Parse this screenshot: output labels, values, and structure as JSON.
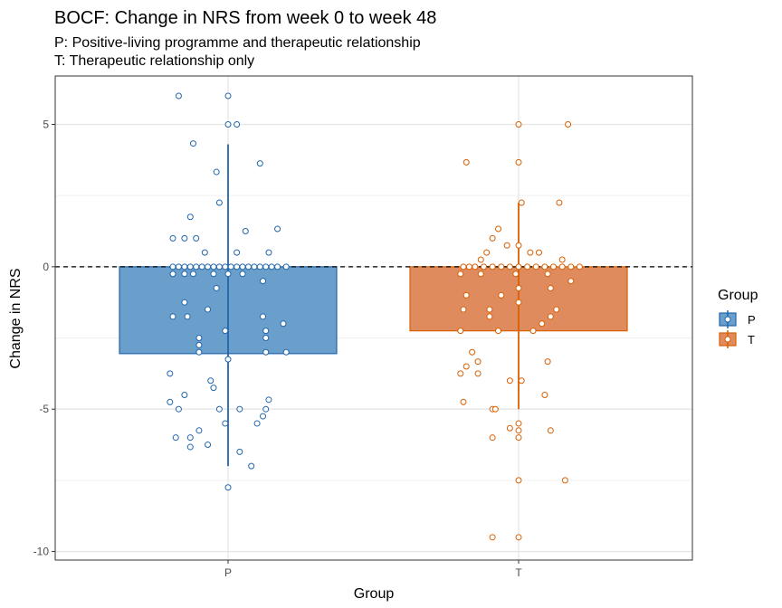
{
  "chart_data": {
    "type": "bar",
    "title": "BOCF: Change in NRS from week 0 to week 48",
    "subtitle_lines": [
      "P: Positive-living programme and therapeutic relationship",
      "T: Therapeutic relationship only"
    ],
    "xlabel": "Group",
    "ylabel": "Change in NRS",
    "categories": [
      "P",
      "T"
    ],
    "ylim": [
      -10.3,
      6.7
    ],
    "yticks": [
      -10,
      -5,
      0,
      5
    ],
    "ytick_labels": [
      "-10",
      "-5",
      "0",
      "5"
    ],
    "reference_line": 0,
    "grid": true,
    "legend": {
      "title": "Group",
      "placement": "right",
      "entries": [
        "P",
        "T"
      ]
    },
    "colors": {
      "P": "#2166ac",
      "T": "#d95f02",
      "P_fill": "#6a9fcb",
      "T_fill": "#e08b5e"
    },
    "series": [
      {
        "name": "P",
        "mean": -3.05,
        "whisker": [
          -7.0,
          4.3
        ],
        "points": [
          [
            -0.17,
            6.0
          ],
          [
            0.0,
            6.0
          ],
          [
            0.0,
            5.0
          ],
          [
            0.03,
            5.0
          ],
          [
            -0.12,
            4.33
          ],
          [
            0.11,
            3.63
          ],
          [
            -0.04,
            3.33
          ],
          [
            -0.03,
            2.25
          ],
          [
            -0.13,
            1.75
          ],
          [
            0.06,
            1.25
          ],
          [
            0.17,
            1.33
          ],
          [
            -0.19,
            1.0
          ],
          [
            -0.15,
            1.0
          ],
          [
            -0.11,
            1.0
          ],
          [
            -0.08,
            0.5
          ],
          [
            0.03,
            0.5
          ],
          [
            0.14,
            0.5
          ],
          [
            -0.19,
            0.0
          ],
          [
            -0.17,
            0.0
          ],
          [
            -0.15,
            0.0
          ],
          [
            -0.13,
            0.0
          ],
          [
            -0.11,
            0.0
          ],
          [
            -0.09,
            0.0
          ],
          [
            -0.07,
            0.0
          ],
          [
            -0.05,
            0.0
          ],
          [
            -0.03,
            0.0
          ],
          [
            -0.01,
            0.0
          ],
          [
            0.01,
            0.0
          ],
          [
            0.03,
            0.0
          ],
          [
            0.05,
            0.0
          ],
          [
            0.07,
            0.0
          ],
          [
            0.09,
            0.0
          ],
          [
            0.11,
            0.0
          ],
          [
            0.13,
            0.0
          ],
          [
            0.15,
            0.0
          ],
          [
            0.17,
            0.0
          ],
          [
            0.2,
            0.0
          ],
          [
            -0.19,
            -0.25
          ],
          [
            -0.15,
            -0.25
          ],
          [
            -0.12,
            -0.25
          ],
          [
            -0.05,
            -0.25
          ],
          [
            0.0,
            -0.25
          ],
          [
            0.05,
            -0.25
          ],
          [
            0.12,
            -0.5
          ],
          [
            -0.04,
            -0.75
          ],
          [
            -0.15,
            -1.25
          ],
          [
            -0.07,
            -1.5
          ],
          [
            -0.19,
            -1.75
          ],
          [
            -0.14,
            -1.75
          ],
          [
            0.12,
            -1.75
          ],
          [
            0.19,
            -2.0
          ],
          [
            -0.01,
            -2.25
          ],
          [
            0.13,
            -2.25
          ],
          [
            0.13,
            -2.5
          ],
          [
            -0.1,
            -2.5
          ],
          [
            -0.1,
            -2.75
          ],
          [
            -0.1,
            -3.0
          ],
          [
            0.13,
            -3.0
          ],
          [
            0.2,
            -3.0
          ],
          [
            0.0,
            -3.25
          ],
          [
            -0.2,
            -3.75
          ],
          [
            -0.06,
            -4.0
          ],
          [
            -0.05,
            -4.25
          ],
          [
            -0.15,
            -4.5
          ],
          [
            0.14,
            -4.67
          ],
          [
            -0.2,
            -4.75
          ],
          [
            -0.03,
            -5.0
          ],
          [
            0.04,
            -5.0
          ],
          [
            0.13,
            -5.0
          ],
          [
            -0.17,
            -5.0
          ],
          [
            0.12,
            -5.25
          ],
          [
            0.1,
            -5.5
          ],
          [
            -0.01,
            -5.5
          ],
          [
            -0.1,
            -5.75
          ],
          [
            -0.18,
            -6.0
          ],
          [
            -0.13,
            -6.0
          ],
          [
            -0.13,
            -6.33
          ],
          [
            -0.07,
            -6.25
          ],
          [
            0.04,
            -6.5
          ],
          [
            0.08,
            -7.0
          ],
          [
            0.0,
            -7.75
          ]
        ]
      },
      {
        "name": "T",
        "mean": -2.25,
        "whisker": [
          -5.0,
          2.25
        ],
        "points": [
          [
            0.0,
            5.0
          ],
          [
            0.17,
            5.0
          ],
          [
            -0.18,
            3.67
          ],
          [
            0.0,
            3.67
          ],
          [
            0.14,
            2.25
          ],
          [
            0.01,
            2.25
          ],
          [
            -0.07,
            1.33
          ],
          [
            -0.09,
            1.0
          ],
          [
            -0.04,
            0.75
          ],
          [
            0.0,
            0.75
          ],
          [
            0.04,
            0.5
          ],
          [
            0.07,
            0.5
          ],
          [
            -0.11,
            0.5
          ],
          [
            -0.13,
            0.25
          ],
          [
            0.15,
            0.25
          ],
          [
            -0.19,
            0.0
          ],
          [
            -0.17,
            0.0
          ],
          [
            -0.15,
            0.0
          ],
          [
            -0.12,
            0.0
          ],
          [
            -0.09,
            0.0
          ],
          [
            -0.06,
            0.0
          ],
          [
            -0.03,
            0.0
          ],
          [
            0.0,
            0.0
          ],
          [
            0.03,
            0.0
          ],
          [
            0.06,
            0.0
          ],
          [
            0.09,
            0.0
          ],
          [
            0.12,
            0.0
          ],
          [
            0.15,
            0.0
          ],
          [
            0.18,
            0.0
          ],
          [
            0.21,
            0.0
          ],
          [
            -0.2,
            -0.25
          ],
          [
            -0.13,
            -0.25
          ],
          [
            -0.01,
            -0.25
          ],
          [
            0.1,
            -0.25
          ],
          [
            0.18,
            -0.5
          ],
          [
            0.0,
            -0.75
          ],
          [
            0.11,
            -0.75
          ],
          [
            -0.18,
            -1.0
          ],
          [
            -0.06,
            -1.0
          ],
          [
            0.0,
            -1.25
          ],
          [
            -0.1,
            -1.5
          ],
          [
            -0.19,
            -1.5
          ],
          [
            0.13,
            -1.5
          ],
          [
            -0.1,
            -1.75
          ],
          [
            0.11,
            -1.75
          ],
          [
            0.08,
            -2.0
          ],
          [
            -0.2,
            -2.25
          ],
          [
            -0.07,
            -2.25
          ],
          [
            0.05,
            -2.25
          ],
          [
            -0.16,
            -3.0
          ],
          [
            -0.14,
            -3.33
          ],
          [
            0.1,
            -3.33
          ],
          [
            -0.18,
            -3.5
          ],
          [
            -0.2,
            -3.75
          ],
          [
            -0.14,
            -3.75
          ],
          [
            -0.03,
            -4.0
          ],
          [
            0.01,
            -4.0
          ],
          [
            0.09,
            -4.5
          ],
          [
            -0.19,
            -4.75
          ],
          [
            -0.09,
            -5.0
          ],
          [
            -0.08,
            -5.0
          ],
          [
            0.0,
            -5.5
          ],
          [
            -0.03,
            -5.67
          ],
          [
            0.0,
            -5.75
          ],
          [
            0.11,
            -5.75
          ],
          [
            0.0,
            -6.0
          ],
          [
            -0.09,
            -6.0
          ],
          [
            0.0,
            -7.5
          ],
          [
            0.16,
            -7.5
          ],
          [
            -0.09,
            -9.5
          ],
          [
            0.0,
            -9.5
          ]
        ]
      }
    ]
  }
}
